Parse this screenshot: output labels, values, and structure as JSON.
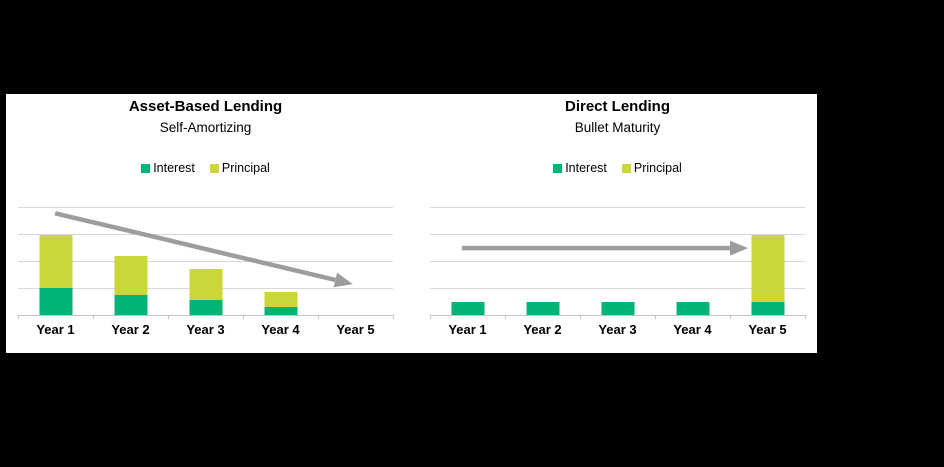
{
  "background_color": "#000000",
  "panel_color": "#ffffff",
  "colors": {
    "interest": "#00b377",
    "principal": "#cbd63b",
    "arrow": "#9d9d9d",
    "gridline": "#d8d8d8",
    "axis": "#c4c4c4",
    "text": "#000000"
  },
  "chart_data": [
    {
      "type": "bar",
      "stacked": true,
      "title": "Asset-Based Lending",
      "subtitle": "Self-Amortizing",
      "categories": [
        "Year 1",
        "Year 2",
        "Year 3",
        "Year 4",
        "Year 5"
      ],
      "series": [
        {
          "name": "Interest",
          "color": "#00b377",
          "values": [
            1.0,
            0.75,
            0.55,
            0.3,
            0
          ]
        },
        {
          "name": "Principal",
          "color": "#cbd63b",
          "values": [
            1.95,
            1.45,
            1.15,
            0.55,
            0
          ]
        }
      ],
      "ylim": [
        0,
        4
      ],
      "gridlines": [
        1,
        2,
        3,
        4
      ],
      "grid": true,
      "yaxis_labels": false,
      "legend_position": "top",
      "annotation_arrow": {
        "meaning": "payments decline over time",
        "from_frac": [
          0.099,
          0.058
        ],
        "to_frac": [
          0.893,
          0.714
        ],
        "color": "#9d9d9d"
      }
    },
    {
      "type": "bar",
      "stacked": true,
      "title": "Direct Lending",
      "subtitle": "Bullet Maturity",
      "categories": [
        "Year 1",
        "Year 2",
        "Year 3",
        "Year 4",
        "Year 5"
      ],
      "series": [
        {
          "name": "Interest",
          "color": "#00b377",
          "values": [
            0.5,
            0.5,
            0.5,
            0.5,
            0.5
          ]
        },
        {
          "name": "Principal",
          "color": "#cbd63b",
          "values": [
            0,
            0,
            0,
            0,
            2.45
          ]
        }
      ],
      "ylim": [
        0,
        4
      ],
      "gridlines": [
        1,
        2,
        3,
        4
      ],
      "grid": true,
      "yaxis_labels": false,
      "legend_position": "top",
      "annotation_arrow": {
        "meaning": "principal repaid at maturity",
        "from_frac": [
          0.085,
          0.381
        ],
        "to_frac": [
          0.848,
          0.381
        ],
        "color": "#9d9d9d"
      }
    }
  ]
}
